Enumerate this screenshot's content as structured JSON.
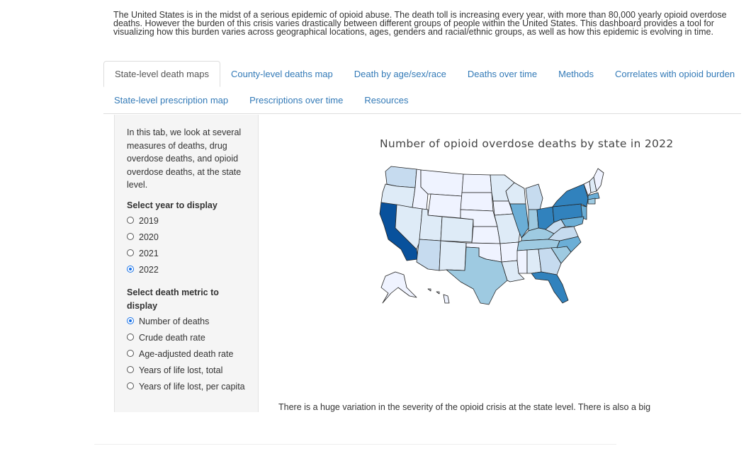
{
  "intro": {
    "line1": "The United States is in the midst of a serious epidemic of opioid abuse. The death toll is increasing every year, with more than 80,000 yearly opioid overdose",
    "line2": "deaths. However the burden of this crisis varies drastically between different groups of people within the United States. This dashboard provides a tool for",
    "line3": "visualizing how this burden varies across geographical locations, ages, genders and racial/ethnic groups, as well as how this epidemic is evolving in time."
  },
  "tabs": {
    "row1": [
      {
        "label": "State-level death maps",
        "active": true
      },
      {
        "label": "County-level deaths map",
        "active": false
      },
      {
        "label": "Death by age/sex/race",
        "active": false
      },
      {
        "label": "Deaths over time",
        "active": false
      },
      {
        "label": "Methods",
        "active": false
      },
      {
        "label": "Correlates with opioid burden",
        "active": false
      }
    ],
    "row2": [
      {
        "label": "State-level prescription map",
        "active": false
      },
      {
        "label": "Prescriptions over time",
        "active": false
      },
      {
        "label": "Resources",
        "active": false
      }
    ]
  },
  "sidebar": {
    "description": "In this tab, we look at several measures of deaths, drug overdose deaths, and opioid overdose deaths, at the state level.",
    "year_label": "Select year to display",
    "years": [
      {
        "label": "2019",
        "checked": false
      },
      {
        "label": "2020",
        "checked": false
      },
      {
        "label": "2021",
        "checked": false
      },
      {
        "label": "2022",
        "checked": true
      }
    ],
    "metric_label": "Select death metric to display",
    "metrics": [
      {
        "label": "Number of deaths",
        "checked": true
      },
      {
        "label": "Crude death rate",
        "checked": false
      },
      {
        "label": "Age-adjusted death rate",
        "checked": false
      },
      {
        "label": "Years of life lost, total",
        "checked": false
      },
      {
        "label": "Years of life lost, per capita",
        "checked": false
      }
    ]
  },
  "map": {
    "title": "Number of opioid overdose deaths by state in 2022",
    "colors": {
      "darkest": "#08519c",
      "dark": "#3182bd",
      "mid": "#6baed6",
      "light": "#9ecae1",
      "lighter": "#c6dbef",
      "lightest": "#deebf7",
      "pale": "#eff3ff"
    }
  },
  "footer": {
    "text": "There is a huge variation in the severity of the opioid crisis at the state level. There is also a big"
  }
}
